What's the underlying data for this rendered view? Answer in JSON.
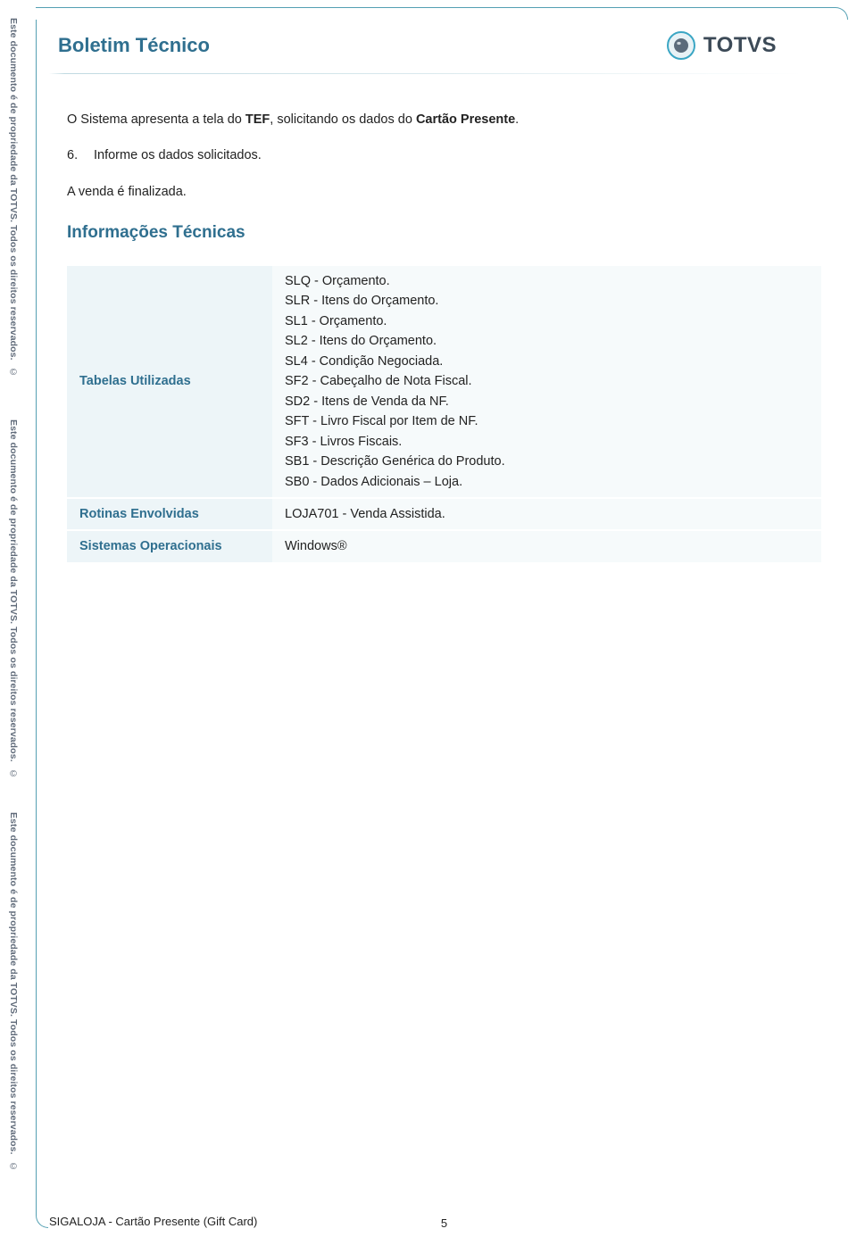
{
  "header": {
    "title": "Boletim Técnico",
    "logo_text": "TOTVS"
  },
  "paragraphs": {
    "p1_pre": "O Sistema apresenta a tela do ",
    "p1_bold1": "TEF",
    "p1_mid": ", solicitando os dados do ",
    "p1_bold2": "Cartão Presente",
    "p1_post": ".",
    "numbered_6_num": "6.",
    "numbered_6_text": "Informe os dados solicitados.",
    "p3": "A venda é finalizada."
  },
  "section_title": "Informações Técnicas",
  "info_table": {
    "rows": [
      {
        "label": "Tabelas Utilizadas",
        "lines": [
          "SLQ - Orçamento.",
          "SLR - Itens do Orçamento.",
          "SL1 - Orçamento.",
          "SL2 - Itens do Orçamento.",
          "SL4 - Condição Negociada.",
          "SF2 - Cabeçalho de Nota Fiscal.",
          "SD2 - Itens de Venda da NF.",
          "SFT - Livro Fiscal por Item de NF.",
          "SF3 - Livros Fiscais.",
          "SB1 - Descrição Genérica do Produto.",
          "SB0 - Dados Adicionais – Loja."
        ]
      },
      {
        "label": "Rotinas Envolvidas",
        "lines": [
          "LOJA701 - Venda Assistida."
        ]
      },
      {
        "label": "Sistemas Operacionais",
        "lines": [
          "Windows®"
        ]
      }
    ]
  },
  "side_text": "Este documento é de propriedade da TOTVS. Todos os direitos reservados.",
  "copyright_glyph": "©",
  "footer": {
    "left": "SIGALOJA - Cartão Presente (Gift Card)",
    "page": "5"
  },
  "colors": {
    "brand_text": "#2f6f8f",
    "frame": "#54a0b3",
    "label_bg": "#edf5f8",
    "value_bg": "#f6fafb",
    "logo_ring": "#3ba6c4",
    "logo_inner": "#5b6b7b",
    "side_text": "#606b7a"
  }
}
